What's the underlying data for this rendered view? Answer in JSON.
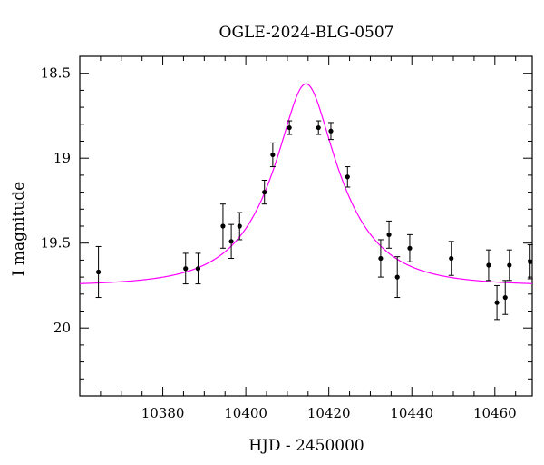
{
  "chart_data": {
    "type": "scatter",
    "title": "OGLE-2024-BLG-0507",
    "xlabel": "HJD - 2450000",
    "ylabel": "I magnitude",
    "xlim": [
      10360,
      10469
    ],
    "ylim": [
      20.4,
      18.4
    ],
    "y_inverted": true,
    "grid": false,
    "x_ticks": [
      10380,
      10400,
      10420,
      10440,
      10460
    ],
    "x_tick_labels": [
      "10380",
      "10400",
      "10420",
      "10440",
      "10460"
    ],
    "y_ticks": [
      18.5,
      19,
      19.5,
      20
    ],
    "y_tick_labels": [
      "18.5",
      "19",
      "19.5",
      "20"
    ],
    "colors": {
      "points": "#000000",
      "model": "#ff00ff",
      "axes": "#000000"
    },
    "series": [
      {
        "type": "scatter-errorbar",
        "points": [
          {
            "x": 10364.5,
            "y": 19.67,
            "err": 0.15
          },
          {
            "x": 10385.5,
            "y": 19.65,
            "err": 0.09
          },
          {
            "x": 10388.5,
            "y": 19.65,
            "err": 0.09
          },
          {
            "x": 10394.5,
            "y": 19.4,
            "err": 0.13
          },
          {
            "x": 10396.5,
            "y": 19.49,
            "err": 0.1
          },
          {
            "x": 10398.5,
            "y": 19.4,
            "err": 0.08
          },
          {
            "x": 10404.5,
            "y": 19.2,
            "err": 0.07
          },
          {
            "x": 10406.5,
            "y": 18.98,
            "err": 0.07
          },
          {
            "x": 10410.5,
            "y": 18.82,
            "err": 0.04
          },
          {
            "x": 10417.5,
            "y": 18.82,
            "err": 0.04
          },
          {
            "x": 10420.5,
            "y": 18.84,
            "err": 0.05
          },
          {
            "x": 10424.5,
            "y": 19.11,
            "err": 0.06
          },
          {
            "x": 10432.5,
            "y": 19.59,
            "err": 0.11
          },
          {
            "x": 10434.5,
            "y": 19.45,
            "err": 0.08
          },
          {
            "x": 10436.5,
            "y": 19.7,
            "err": 0.12
          },
          {
            "x": 10439.5,
            "y": 19.53,
            "err": 0.08
          },
          {
            "x": 10449.5,
            "y": 19.59,
            "err": 0.1
          },
          {
            "x": 10458.5,
            "y": 19.63,
            "err": 0.09
          },
          {
            "x": 10460.5,
            "y": 19.85,
            "err": 0.1
          },
          {
            "x": 10462.5,
            "y": 19.82,
            "err": 0.1
          },
          {
            "x": 10463.5,
            "y": 19.63,
            "err": 0.09
          },
          {
            "x": 10468.5,
            "y": 19.61,
            "err": 0.1
          }
        ]
      },
      {
        "type": "line",
        "model": {
          "t0": 10414.5,
          "u0": 0.35,
          "tE": 16,
          "baseline": 19.75
        }
      }
    ]
  }
}
